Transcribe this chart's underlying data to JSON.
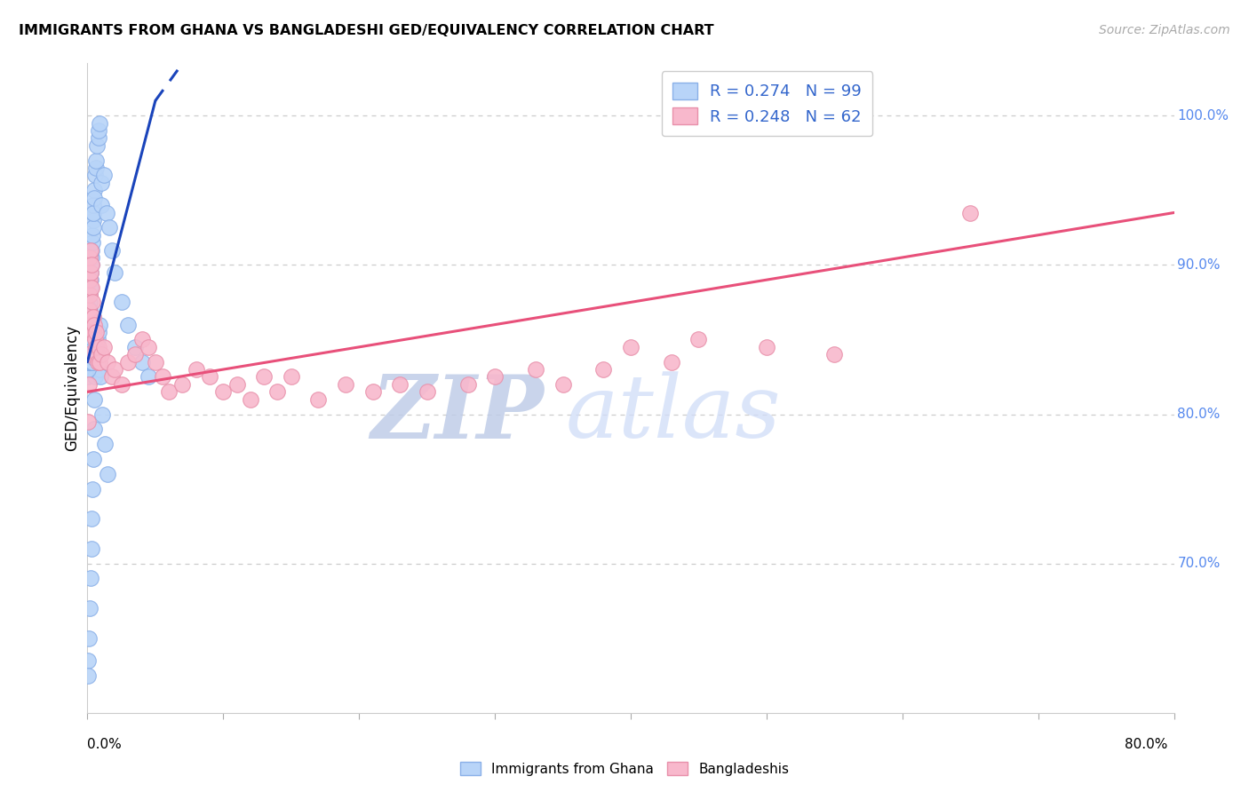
{
  "title": "IMMIGRANTS FROM GHANA VS BANGLADESHI GED/EQUIVALENCY CORRELATION CHART",
  "source": "Source: ZipAtlas.com",
  "ylabel": "GED/Equivalency",
  "x_min": 0.0,
  "x_max": 80.0,
  "y_min": 60.0,
  "y_max": 103.5,
  "right_yticks": [
    70.0,
    80.0,
    90.0,
    100.0
  ],
  "ghana_color": "#b8d4f8",
  "bangladesh_color": "#f8b8cc",
  "ghana_edge": "#8ab0e8",
  "bangladesh_edge": "#e890aa",
  "trend_ghana_color": "#1a44bb",
  "trend_bangladesh_color": "#e8507a",
  "watermark_zip": "ZIP",
  "watermark_atlas": "atlas",
  "ghana_x": [
    0.05,
    0.05,
    0.05,
    0.05,
    0.05,
    0.05,
    0.05,
    0.05,
    0.05,
    0.05,
    0.08,
    0.08,
    0.08,
    0.1,
    0.1,
    0.1,
    0.1,
    0.1,
    0.15,
    0.15,
    0.15,
    0.15,
    0.15,
    0.2,
    0.2,
    0.2,
    0.2,
    0.25,
    0.25,
    0.25,
    0.3,
    0.3,
    0.3,
    0.35,
    0.35,
    0.4,
    0.4,
    0.4,
    0.45,
    0.45,
    0.5,
    0.5,
    0.55,
    0.6,
    0.65,
    0.7,
    0.8,
    0.85,
    0.9,
    1.0,
    1.0,
    1.2,
    1.4,
    1.6,
    1.8,
    2.0,
    2.5,
    3.0,
    3.5,
    4.0,
    4.5,
    0.05,
    0.05,
    0.12,
    0.18,
    0.22,
    0.28,
    0.32,
    0.38,
    0.42,
    0.48,
    0.52,
    0.58,
    0.62,
    0.68,
    0.72,
    0.78,
    0.82,
    0.88,
    0.92,
    0.96,
    1.1,
    1.3,
    1.5,
    0.05,
    0.05,
    0.05,
    0.06,
    0.07,
    0.09,
    0.11,
    0.13,
    0.17,
    0.19,
    0.23,
    0.26,
    0.29,
    0.33,
    0.36,
    0.39,
    0.43,
    0.47
  ],
  "ghana_y": [
    84.5,
    83.8,
    85.2,
    83.0,
    84.0,
    85.5,
    83.5,
    84.8,
    83.2,
    82.5,
    85.0,
    84.2,
    83.5,
    84.5,
    83.8,
    85.0,
    84.0,
    83.5,
    86.5,
    85.8,
    87.0,
    86.0,
    85.5,
    87.5,
    88.0,
    87.0,
    86.5,
    89.0,
    88.5,
    89.5,
    90.5,
    91.0,
    90.0,
    91.5,
    92.0,
    93.0,
    92.5,
    93.5,
    94.0,
    93.5,
    95.0,
    94.5,
    96.0,
    96.5,
    97.0,
    98.0,
    98.5,
    99.0,
    99.5,
    95.5,
    94.0,
    96.0,
    93.5,
    92.5,
    91.0,
    89.5,
    87.5,
    86.0,
    84.5,
    83.5,
    82.5,
    63.5,
    62.5,
    65.0,
    67.0,
    69.0,
    71.0,
    73.0,
    75.0,
    77.0,
    79.0,
    81.0,
    82.5,
    83.5,
    84.0,
    84.5,
    85.0,
    85.5,
    86.0,
    83.0,
    82.5,
    80.0,
    78.0,
    76.0,
    84.2,
    83.8,
    83.0,
    84.5,
    84.0,
    83.5,
    84.0,
    83.5,
    84.2,
    83.8,
    84.0,
    83.5,
    84.0,
    83.5,
    84.0,
    83.5,
    84.2,
    83.8
  ],
  "bangladesh_x": [
    0.05,
    0.08,
    0.1,
    0.12,
    0.15,
    0.18,
    0.2,
    0.22,
    0.25,
    0.28,
    0.3,
    0.35,
    0.4,
    0.45,
    0.5,
    0.55,
    0.6,
    0.65,
    0.7,
    0.75,
    0.8,
    0.9,
    1.0,
    1.2,
    1.5,
    1.8,
    2.0,
    2.5,
    3.0,
    3.5,
    4.0,
    4.5,
    5.0,
    5.5,
    6.0,
    7.0,
    8.0,
    9.0,
    10.0,
    11.0,
    12.0,
    13.0,
    14.0,
    15.0,
    17.0,
    19.0,
    21.0,
    23.0,
    25.0,
    28.0,
    30.0,
    33.0,
    35.0,
    38.0,
    40.0,
    43.0,
    45.0,
    50.0,
    55.0,
    65.0,
    0.05,
    0.08
  ],
  "bangladesh_y": [
    84.0,
    85.5,
    86.5,
    87.0,
    88.0,
    89.0,
    90.5,
    89.5,
    91.0,
    90.0,
    88.5,
    87.5,
    86.5,
    85.5,
    86.0,
    85.0,
    84.5,
    85.5,
    84.0,
    83.5,
    84.5,
    83.5,
    84.0,
    84.5,
    83.5,
    82.5,
    83.0,
    82.0,
    83.5,
    84.0,
    85.0,
    84.5,
    83.5,
    82.5,
    81.5,
    82.0,
    83.0,
    82.5,
    81.5,
    82.0,
    81.0,
    82.5,
    81.5,
    82.5,
    81.0,
    82.0,
    81.5,
    82.0,
    81.5,
    82.0,
    82.5,
    83.0,
    82.0,
    83.0,
    84.5,
    83.5,
    85.0,
    84.5,
    84.0,
    93.5,
    79.5,
    82.0
  ],
  "ghana_trend_x0": 0.0,
  "ghana_trend_y0": 83.5,
  "ghana_trend_x1": 5.0,
  "ghana_trend_y1": 101.0,
  "ghana_dashed_x0": 5.0,
  "ghana_dashed_y0": 101.0,
  "ghana_dashed_x1": 7.0,
  "ghana_dashed_y1": 103.5,
  "bangladesh_trend_x0": 0.0,
  "bangladesh_trend_y0": 81.5,
  "bangladesh_trend_x1": 80.0,
  "bangladesh_trend_y1": 93.5
}
